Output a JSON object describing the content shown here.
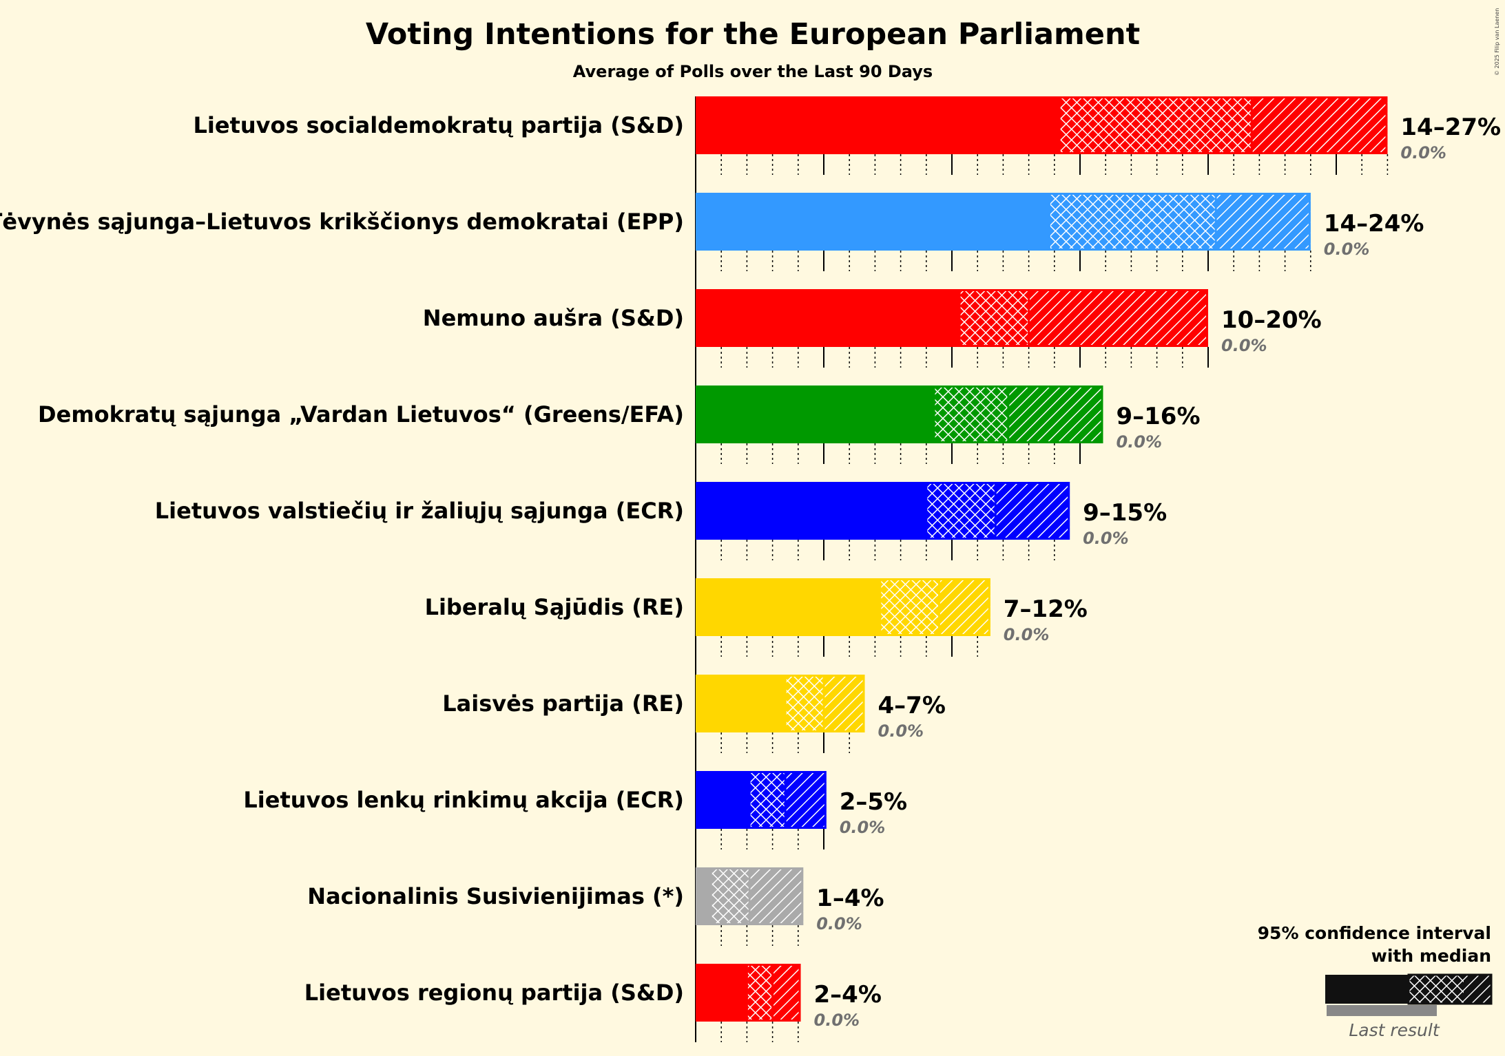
{
  "chart_data": {
    "type": "bar",
    "title": "Voting Intentions for the European Parliament",
    "subtitle": "Average of Polls over the Last 90 Days",
    "x_unit": "%",
    "xlim": [
      0,
      30
    ],
    "major_gridlines_every": 5,
    "minor_gridlines_every": 1,
    "parties": [
      {
        "name": "Lietuvos socialdemokratų partija (S&D)",
        "color": "#ff0000",
        "low": 14.2,
        "median": 21.7,
        "high": 27.0,
        "last": 0.0,
        "label": "14–27%",
        "last_label": "0.0%"
      },
      {
        "name": "Tėvynės sąjunga–Lietuvos krikščionys demokratai (EPP)",
        "color": "#3399ff",
        "low": 13.8,
        "median": 20.3,
        "high": 24.0,
        "last": 0.0,
        "label": "14–24%",
        "last_label": "0.0%"
      },
      {
        "name": "Nemuno aušra (S&D)",
        "color": "#ff0000",
        "low": 10.3,
        "median": 13.0,
        "high": 20.0,
        "last": 0.0,
        "label": "10–20%",
        "last_label": "0.0%"
      },
      {
        "name": "Demokratų sąjunga „Vardan Lietuvos“ (Greens/EFA)",
        "color": "#009900",
        "low": 9.3,
        "median": 12.2,
        "high": 15.9,
        "last": 0.0,
        "label": "9–16%",
        "last_label": "0.0%"
      },
      {
        "name": "Lietuvos valstiečių ir žaliųjų sąjunga (ECR)",
        "color": "#0000ff",
        "low": 9.0,
        "median": 11.7,
        "high": 14.6,
        "last": 0.0,
        "label": "9–15%",
        "last_label": "0.0%"
      },
      {
        "name": "Liberalų Sąjūdis (RE)",
        "color": "#ffd700",
        "low": 7.2,
        "median": 9.5,
        "high": 11.5,
        "last": 0.0,
        "label": "7–12%",
        "last_label": "0.0%"
      },
      {
        "name": "Laisvės partija (RE)",
        "color": "#ffd700",
        "low": 3.5,
        "median": 5.0,
        "high": 6.6,
        "last": 0.0,
        "label": "4–7%",
        "last_label": "0.0%"
      },
      {
        "name": "Lietuvos lenkų rinkimų akcija (ECR)",
        "color": "#0000ff",
        "low": 2.1,
        "median": 3.5,
        "high": 5.1,
        "last": 0.0,
        "label": "2–5%",
        "last_label": "0.0%"
      },
      {
        "name": "Nacionalinis Susivienijimas (*)",
        "color": "#aaaaaa",
        "low": 0.6,
        "median": 2.1,
        "high": 4.2,
        "last": 0.0,
        "label": "1–4%",
        "last_label": "0.0%"
      },
      {
        "name": "Lietuvos regionų partija (S&D)",
        "color": "#ff0000",
        "low": 2.0,
        "median": 3.0,
        "high": 4.1,
        "last": 0.0,
        "label": "2–4%",
        "last_label": "0.0%"
      }
    ],
    "legend": {
      "line1": "95% confidence interval",
      "line2": "with median",
      "last_result": "Last result",
      "position": "bottom-right"
    },
    "copyright": "© 2025 Filip van Laenen"
  }
}
